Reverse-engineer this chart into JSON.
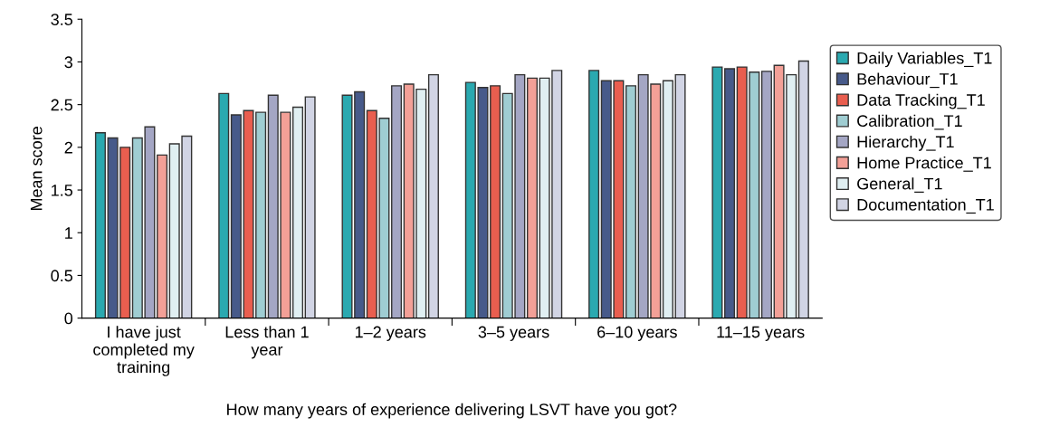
{
  "chart_data": {
    "type": "bar",
    "xlabel": "How many years of experience delivering LSVT have you got?",
    "ylabel": "Mean score",
    "categories": [
      "I have just\ncompleted my\ntraining",
      "Less than 1\nyear",
      "1–2 years",
      "3–5 years",
      "6–10 years",
      "11–15 years"
    ],
    "series": [
      {
        "name": "Daily Variables_T1",
        "color": "#2aa9b0",
        "values": [
          2.17,
          2.63,
          2.61,
          2.76,
          2.9,
          2.94
        ]
      },
      {
        "name": "Behaviour_T1",
        "color": "#475a8a",
        "values": [
          2.11,
          2.38,
          2.65,
          2.7,
          2.78,
          2.92
        ]
      },
      {
        "name": "Data Tracking_T1",
        "color": "#e95e4f",
        "values": [
          2.0,
          2.43,
          2.43,
          2.72,
          2.78,
          2.94
        ]
      },
      {
        "name": "Calibration_T1",
        "color": "#9fcdd2",
        "values": [
          2.11,
          2.41,
          2.34,
          2.63,
          2.72,
          2.88
        ]
      },
      {
        "name": "Hierarchy_T1",
        "color": "#a4a6c4",
        "values": [
          2.24,
          2.61,
          2.72,
          2.85,
          2.85,
          2.89
        ]
      },
      {
        "name": "Home Practice_T1",
        "color": "#f3a097",
        "values": [
          1.91,
          2.41,
          2.74,
          2.81,
          2.74,
          2.96
        ]
      },
      {
        "name": "General_T1",
        "color": "#e0eff2",
        "values": [
          2.04,
          2.47,
          2.68,
          2.81,
          2.78,
          2.85
        ]
      },
      {
        "name": "Documentation_T1",
        "color": "#d1d4e4",
        "values": [
          2.13,
          2.59,
          2.85,
          2.9,
          2.85,
          3.01
        ]
      }
    ],
    "ylim": [
      0,
      3.5
    ],
    "yticks": [
      0,
      0.5,
      1,
      1.5,
      2,
      2.5,
      3,
      3.5
    ],
    "grid": false,
    "legend": "right"
  }
}
